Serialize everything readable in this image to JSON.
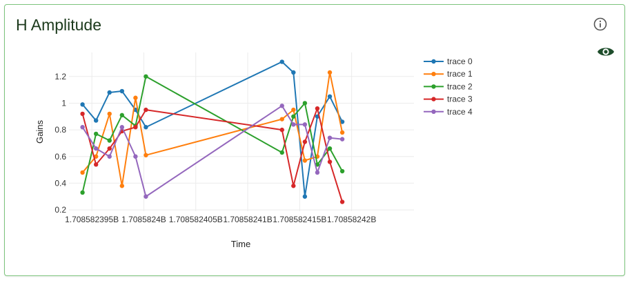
{
  "card": {
    "title": "H Amplitude"
  },
  "icons": {
    "info": "info-icon",
    "visibility": "eye-icon"
  },
  "colors": {
    "card_border": "#7cc47c",
    "eye": "#1e4d2b",
    "title": "#1c3a1c"
  },
  "chart_data": {
    "type": "line",
    "xlabel": "Time",
    "ylabel": "Gains",
    "xlim": [
      1708582392.8,
      1708582426.0
    ],
    "ylim": [
      0.19,
      1.38
    ],
    "x_ticks": [
      {
        "value": 1708582395,
        "label": "1.708582395B"
      },
      {
        "value": 1708582400,
        "label": "1.7085824B"
      },
      {
        "value": 1708582405,
        "label": "1.708582405B"
      },
      {
        "value": 1708582410,
        "label": "1.70858241B"
      },
      {
        "value": 1708582415,
        "label": "1.708582415B"
      },
      {
        "value": 1708582420,
        "label": "1.70858242B"
      }
    ],
    "y_ticks": [
      {
        "value": 0.2,
        "label": "0.2"
      },
      {
        "value": 0.4,
        "label": "0.4"
      },
      {
        "value": 0.6,
        "label": "0.6"
      },
      {
        "value": 0.8,
        "label": "0.8"
      },
      {
        "value": 1.0,
        "label": "1"
      },
      {
        "value": 1.2,
        "label": "1.2"
      }
    ],
    "grid": true,
    "legend_position": "right",
    "x": [
      1708582394.1,
      1708582395.4,
      1708582396.7,
      1708582397.9,
      1708582399.2,
      1708582400.2,
      1708582413.3,
      1708582414.4,
      1708582415.5,
      1708582416.7,
      1708582417.9,
      1708582419.1
    ],
    "series": [
      {
        "name": "trace 0",
        "color": "#1f77b4",
        "values": [
          0.99,
          0.87,
          1.08,
          1.09,
          0.95,
          0.82,
          1.31,
          1.23,
          0.3,
          0.9,
          1.05,
          0.86
        ]
      },
      {
        "name": "trace 1",
        "color": "#ff7f0e",
        "values": [
          0.48,
          0.6,
          0.92,
          0.38,
          1.04,
          0.61,
          0.88,
          0.95,
          0.57,
          0.6,
          1.23,
          0.78
        ]
      },
      {
        "name": "trace 2",
        "color": "#2ca02c",
        "values": [
          0.33,
          0.77,
          0.72,
          0.91,
          0.83,
          1.2,
          0.63,
          0.9,
          1.0,
          0.54,
          0.66,
          0.49
        ]
      },
      {
        "name": "trace 3",
        "color": "#d62728",
        "values": [
          0.92,
          0.54,
          0.66,
          0.79,
          0.82,
          0.95,
          0.8,
          0.38,
          0.71,
          0.96,
          0.56,
          0.26
        ]
      },
      {
        "name": "trace 4",
        "color": "#9467bd",
        "values": [
          0.82,
          0.66,
          0.6,
          0.82,
          0.6,
          0.3,
          0.98,
          0.84,
          0.84,
          0.48,
          0.74,
          0.73
        ]
      }
    ]
  }
}
